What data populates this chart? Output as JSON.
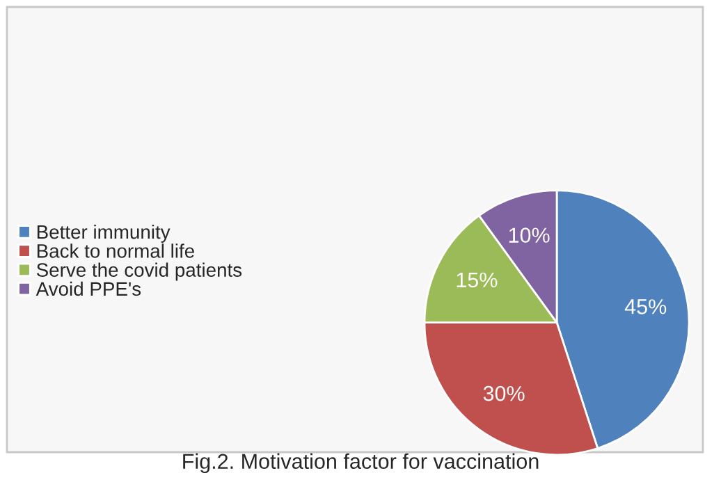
{
  "chart_data": {
    "type": "pie",
    "title": "Fig.2. Motivation factor for vaccination",
    "categories": [
      "Better immunity",
      "Back to normal life",
      "Serve the covid patients",
      "Avoid PPE's"
    ],
    "values": [
      45,
      30,
      15,
      10
    ],
    "colors": [
      "#4f81bd",
      "#c0504d",
      "#9bbb59",
      "#8064a2"
    ],
    "value_labels": [
      "45%",
      "30%",
      "15%",
      "10%"
    ],
    "legend": "left"
  }
}
